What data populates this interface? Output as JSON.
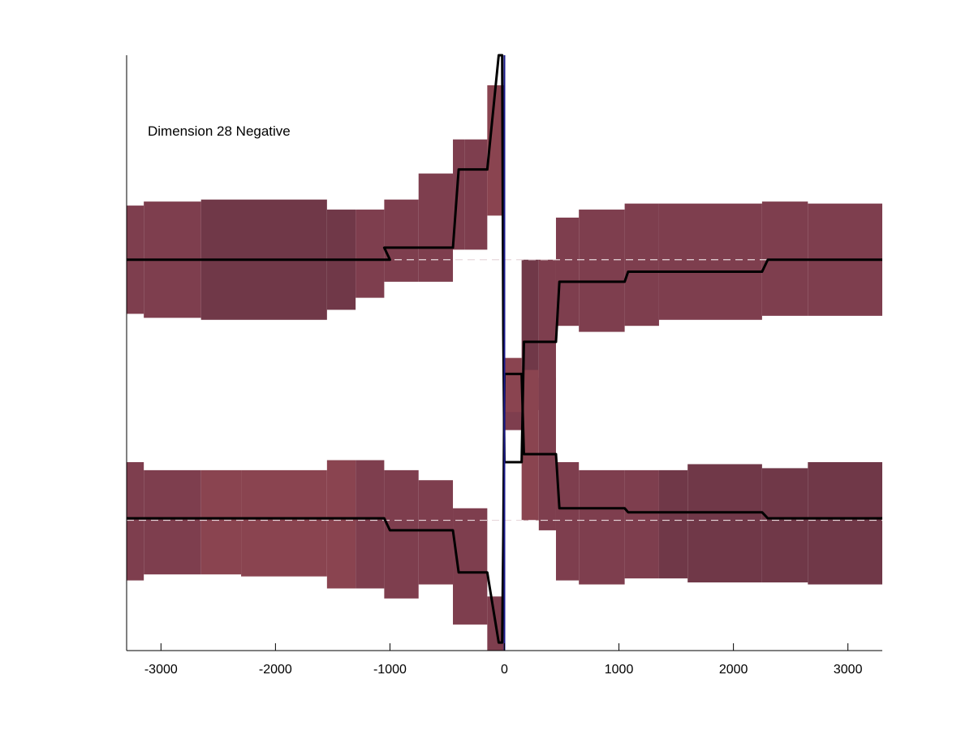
{
  "chart_data": {
    "type": "area",
    "annotation": "Dimension 28 Negative",
    "xlim": [
      -3300,
      3300
    ],
    "xticks": [
      -3000,
      -2000,
      -1000,
      0,
      1000,
      2000,
      3000
    ],
    "xtick_labels": [
      "-3000",
      "-2000",
      "-1000",
      "0",
      "1000",
      "2000",
      "3000"
    ],
    "grid": false,
    "colors": {
      "band_dark": "#703848",
      "band_mid": "#7e3e4e",
      "band_light": "#8a4450",
      "line": "#000000",
      "center_line": "#1a1a8c",
      "reference_dash": "#e8d8dc"
    },
    "upper_band": {
      "reference_y": 0.37,
      "bins": [
        {
          "x0": -3300,
          "x1": -3150,
          "lo": 0.1,
          "hi": 0.64,
          "shade": "mid"
        },
        {
          "x0": -3150,
          "x1": -2650,
          "lo": 0.08,
          "hi": 0.66,
          "shade": "mid"
        },
        {
          "x0": -2650,
          "x1": -1550,
          "lo": 0.07,
          "hi": 0.67,
          "shade": "dark"
        },
        {
          "x0": -1550,
          "x1": -1300,
          "lo": 0.12,
          "hi": 0.62,
          "shade": "dark"
        },
        {
          "x0": -1300,
          "x1": -1050,
          "lo": 0.18,
          "hi": 0.62,
          "shade": "mid"
        },
        {
          "x0": -1050,
          "x1": -750,
          "lo": 0.26,
          "hi": 0.67,
          "shade": "mid"
        },
        {
          "x0": -750,
          "x1": -450,
          "lo": 0.26,
          "hi": 0.8,
          "shade": "mid"
        },
        {
          "x0": -450,
          "x1": -350,
          "lo": 0.42,
          "hi": 0.97,
          "shade": "mid"
        },
        {
          "x0": -350,
          "x1": -150,
          "lo": 0.42,
          "hi": 0.97,
          "shade": "mid"
        },
        {
          "x0": -150,
          "x1": 0,
          "lo": 0.59,
          "hi": 1.24,
          "shade": "light"
        },
        {
          "x0": 0,
          "x1": 150,
          "lo": -0.48,
          "hi": -0.16,
          "shade": "mid"
        },
        {
          "x0": 150,
          "x1": 300,
          "lo": -0.38,
          "hi": 0.37,
          "shade": "dark"
        },
        {
          "x0": 300,
          "x1": 450,
          "lo": -0.38,
          "hi": 0.37,
          "shade": "mid"
        },
        {
          "x0": 450,
          "x1": 650,
          "lo": 0.04,
          "hi": 0.58,
          "shade": "mid"
        },
        {
          "x0": 650,
          "x1": 1050,
          "lo": 0.01,
          "hi": 0.62,
          "shade": "mid"
        },
        {
          "x0": 1050,
          "x1": 1350,
          "lo": 0.04,
          "hi": 0.65,
          "shade": "mid"
        },
        {
          "x0": 1350,
          "x1": 2250,
          "lo": 0.07,
          "hi": 0.65,
          "shade": "mid"
        },
        {
          "x0": 2250,
          "x1": 2650,
          "lo": 0.09,
          "hi": 0.66,
          "shade": "mid"
        },
        {
          "x0": 2650,
          "x1": 3300,
          "lo": 0.09,
          "hi": 0.65,
          "shade": "mid"
        }
      ],
      "line": {
        "x": [
          -3300,
          -2300,
          -1000,
          -1050,
          -950,
          -450,
          -400,
          -150,
          -50,
          -20,
          -10,
          0,
          20,
          150,
          170,
          300,
          450,
          480,
          1050,
          1080,
          2250,
          2300,
          3300
        ],
        "y": [
          0.37,
          0.37,
          0.37,
          0.43,
          0.43,
          0.43,
          0.82,
          0.82,
          1.39,
          1.39,
          0.0,
          -0.64,
          -0.64,
          -0.64,
          -0.04,
          -0.04,
          -0.04,
          0.26,
          0.26,
          0.31,
          0.31,
          0.37,
          0.37
        ]
      }
    },
    "lower_band": {
      "reference_y": -0.93,
      "bins": [
        {
          "x0": -3300,
          "x1": -3150,
          "lo": -1.23,
          "hi": -0.64,
          "shade": "mid"
        },
        {
          "x0": -3150,
          "x1": -2650,
          "lo": -1.2,
          "hi": -0.68,
          "shade": "mid"
        },
        {
          "x0": -2650,
          "x1": -2300,
          "lo": -1.2,
          "hi": -0.68,
          "shade": "light"
        },
        {
          "x0": -2300,
          "x1": -1550,
          "lo": -1.21,
          "hi": -0.68,
          "shade": "light"
        },
        {
          "x0": -1550,
          "x1": -1300,
          "lo": -1.27,
          "hi": -0.63,
          "shade": "light"
        },
        {
          "x0": -1300,
          "x1": -1050,
          "lo": -1.27,
          "hi": -0.63,
          "shade": "mid"
        },
        {
          "x0": -1050,
          "x1": -750,
          "lo": -1.32,
          "hi": -0.68,
          "shade": "mid"
        },
        {
          "x0": -750,
          "x1": -450,
          "lo": -1.25,
          "hi": -0.73,
          "shade": "mid"
        },
        {
          "x0": -450,
          "x1": -150,
          "lo": -1.45,
          "hi": -0.87,
          "shade": "mid"
        },
        {
          "x0": -150,
          "x1": 0,
          "lo": -1.58,
          "hi": -1.31,
          "shade": "mid"
        },
        {
          "x0": 0,
          "x1": 150,
          "lo": -0.39,
          "hi": -0.12,
          "shade": "light"
        },
        {
          "x0": 150,
          "x1": 300,
          "lo": -0.93,
          "hi": -0.18,
          "shade": "light"
        },
        {
          "x0": 300,
          "x1": 450,
          "lo": -0.98,
          "hi": -0.22,
          "shade": "mid"
        },
        {
          "x0": 450,
          "x1": 650,
          "lo": -1.23,
          "hi": -0.64,
          "shade": "mid"
        },
        {
          "x0": 650,
          "x1": 1050,
          "lo": -1.25,
          "hi": -0.68,
          "shade": "mid"
        },
        {
          "x0": 1050,
          "x1": 1350,
          "lo": -1.22,
          "hi": -0.68,
          "shade": "mid"
        },
        {
          "x0": 1350,
          "x1": 1600,
          "lo": -1.22,
          "hi": -0.68,
          "shade": "dark"
        },
        {
          "x0": 1600,
          "x1": 2250,
          "lo": -1.24,
          "hi": -0.65,
          "shade": "dark"
        },
        {
          "x0": 2250,
          "x1": 2650,
          "lo": -1.24,
          "hi": -0.67,
          "shade": "dark"
        },
        {
          "x0": 2650,
          "x1": 3300,
          "lo": -1.25,
          "hi": -0.64,
          "shade": "dark"
        }
      ],
      "line": {
        "x": [
          -3300,
          -2300,
          -1050,
          -1000,
          -950,
          -450,
          -400,
          -150,
          -50,
          -20,
          -10,
          0,
          20,
          150,
          170,
          300,
          450,
          480,
          1050,
          1080,
          2250,
          2300,
          3300
        ],
        "y": [
          -0.92,
          -0.92,
          -0.92,
          -0.98,
          -0.98,
          -0.98,
          -1.19,
          -1.19,
          -1.54,
          -1.54,
          -1.0,
          -0.2,
          -0.2,
          -0.2,
          -0.6,
          -0.6,
          -0.6,
          -0.87,
          -0.87,
          -0.89,
          -0.89,
          -0.92,
          -0.92
        ]
      }
    },
    "ylim": [
      -1.58,
      1.39
    ]
  }
}
